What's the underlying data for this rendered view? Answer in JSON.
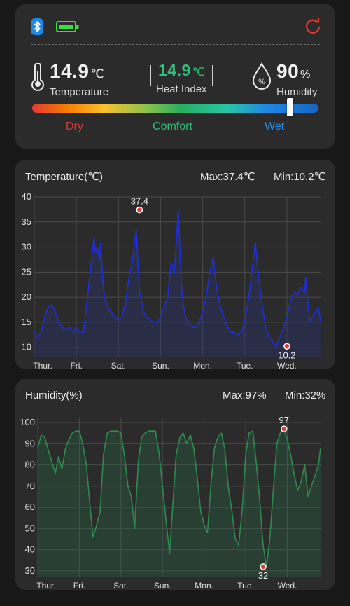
{
  "status": {
    "bluetooth_icon": "bluetooth-icon",
    "battery_icon": "battery-full-icon",
    "refresh_icon": "refresh-icon",
    "battery_color": "#3ddc3d",
    "refresh_color": "#e53935"
  },
  "temperature": {
    "value": "14.9",
    "unit": "℃",
    "label": "Temperature"
  },
  "heat_index": {
    "value": "14.9",
    "unit": "℃",
    "label": "Heat Index",
    "color": "#2fc17a"
  },
  "humidity": {
    "value": "90",
    "unit": "%",
    "label": "Humidity",
    "icon_text": "%"
  },
  "comfort_scale": {
    "dry": "Dry",
    "comfort": "Comfort",
    "wet": "Wet",
    "position": 0.906
  },
  "temp_chart": {
    "title": "Temperature(℃)",
    "max_label": "Max:37.4℃",
    "min_label": "Min:10.2℃"
  },
  "hum_chart": {
    "title": "Humidity(%)",
    "max_label": "Max:97%",
    "min_label": "Min:32%"
  },
  "chart_data": [
    {
      "type": "line",
      "title": "Temperature(℃)",
      "x_categories": [
        "Thur.",
        "Fri.",
        "Sat.",
        "Sun.",
        "Mon.",
        "Tue.",
        "Wed."
      ],
      "xlim": [
        0,
        6.8
      ],
      "ylim": [
        8,
        40
      ],
      "yticks": [
        10,
        15,
        20,
        25,
        30,
        35,
        40
      ],
      "grid": true,
      "color": "#1f2fd6",
      "x": [
        0,
        0.08,
        0.17,
        0.25,
        0.33,
        0.42,
        0.5,
        0.58,
        0.67,
        0.75,
        0.83,
        0.92,
        1.0,
        1.08,
        1.17,
        1.25,
        1.33,
        1.42,
        1.45,
        1.5,
        1.55,
        1.58,
        1.63,
        1.67,
        1.75,
        1.83,
        1.92,
        2.0,
        2.08,
        2.17,
        2.25,
        2.33,
        2.42,
        2.5,
        2.58,
        2.6,
        2.67,
        2.75,
        2.83,
        2.92,
        3.0,
        3.08,
        3.17,
        3.25,
        3.33,
        3.42,
        3.5,
        3.55,
        3.6,
        3.65,
        3.7,
        3.75,
        3.83,
        3.92,
        4.0,
        4.08,
        4.17,
        4.25,
        4.33,
        4.42,
        4.5,
        4.55,
        4.6,
        4.67,
        4.75,
        4.83,
        4.92,
        5.0,
        5.08,
        5.17,
        5.25,
        5.33,
        5.42,
        5.5,
        5.58,
        5.67,
        5.75,
        5.83,
        5.92,
        6.0,
        6.08,
        6.17,
        6.25,
        6.33,
        6.42,
        6.45,
        6.5,
        6.55,
        6.6,
        6.67,
        6.75,
        6.8
      ],
      "y": [
        13,
        12,
        13,
        16,
        18,
        18.5,
        17,
        15,
        14,
        13.5,
        14,
        13,
        14,
        13,
        13,
        19,
        25,
        32,
        29,
        30,
        27,
        31,
        23,
        20,
        18,
        17,
        16,
        15.5,
        16,
        19,
        24,
        27,
        33.5,
        21,
        18,
        17,
        16,
        15.5,
        15,
        15,
        16,
        18,
        20,
        27,
        25,
        37.4,
        22,
        18,
        16,
        15,
        14.5,
        14,
        14,
        15,
        17,
        20,
        25,
        28,
        22,
        18,
        16,
        15,
        14,
        13,
        13,
        12.5,
        13,
        15,
        19,
        25,
        31,
        24,
        18,
        14,
        12,
        11,
        10.2,
        12,
        14,
        16,
        19,
        21,
        20.5,
        22,
        21,
        24,
        19,
        15,
        16,
        17,
        18,
        15
      ],
      "annotations": [
        {
          "x": 2.5,
          "y": 37.4,
          "label": "37.4"
        },
        {
          "x": 6.0,
          "y": 10.2,
          "label": "10.2"
        }
      ]
    },
    {
      "type": "area",
      "title": "Humidity(%)",
      "x_categories": [
        "Thur.",
        "Fri.",
        "Sat.",
        "Sun.",
        "Mon.",
        "Tue.",
        "Wed."
      ],
      "xlim": [
        0,
        6.8
      ],
      "ylim": [
        27,
        102
      ],
      "yticks": [
        30,
        40,
        50,
        60,
        70,
        80,
        90,
        100
      ],
      "grid": true,
      "color": "#2e8b4e",
      "x": [
        0,
        0.08,
        0.17,
        0.25,
        0.33,
        0.42,
        0.5,
        0.58,
        0.67,
        0.75,
        0.83,
        0.92,
        1.0,
        1.08,
        1.17,
        1.25,
        1.33,
        1.42,
        1.5,
        1.58,
        1.67,
        1.75,
        1.83,
        1.92,
        2.0,
        2.08,
        2.17,
        2.25,
        2.33,
        2.42,
        2.5,
        2.58,
        2.67,
        2.75,
        2.83,
        2.92,
        3.0,
        3.08,
        3.17,
        3.25,
        3.33,
        3.42,
        3.5,
        3.58,
        3.67,
        3.75,
        3.83,
        3.92,
        4.0,
        4.08,
        4.17,
        4.25,
        4.33,
        4.42,
        4.5,
        4.58,
        4.67,
        4.75,
        4.83,
        4.92,
        5.0,
        5.08,
        5.17,
        5.25,
        5.33,
        5.42,
        5.5,
        5.58,
        5.67,
        5.75,
        5.83,
        5.92,
        6.0,
        6.08,
        6.17,
        6.25,
        6.33,
        6.42,
        6.5,
        6.58,
        6.67,
        6.75,
        6.8
      ],
      "y": [
        88,
        94,
        93,
        87,
        82,
        76,
        84,
        78,
        88,
        92,
        95,
        96,
        96,
        90,
        80,
        62,
        46,
        52,
        58,
        85,
        95,
        96,
        96,
        96,
        95,
        85,
        70,
        65,
        50,
        82,
        93,
        95,
        96,
        96,
        96,
        85,
        70,
        55,
        38,
        62,
        85,
        93,
        95,
        90,
        94,
        88,
        75,
        58,
        52,
        48,
        72,
        88,
        93,
        95,
        87,
        70,
        58,
        45,
        42,
        60,
        85,
        95,
        96,
        82,
        65,
        42,
        32,
        45,
        70,
        90,
        95,
        97,
        92,
        85,
        75,
        68,
        72,
        80,
        65,
        70,
        75,
        80,
        88
      ],
      "annotations": [
        {
          "x": 5.42,
          "y": 32,
          "label": "32"
        },
        {
          "x": 5.92,
          "y": 97,
          "label": "97"
        }
      ]
    }
  ]
}
